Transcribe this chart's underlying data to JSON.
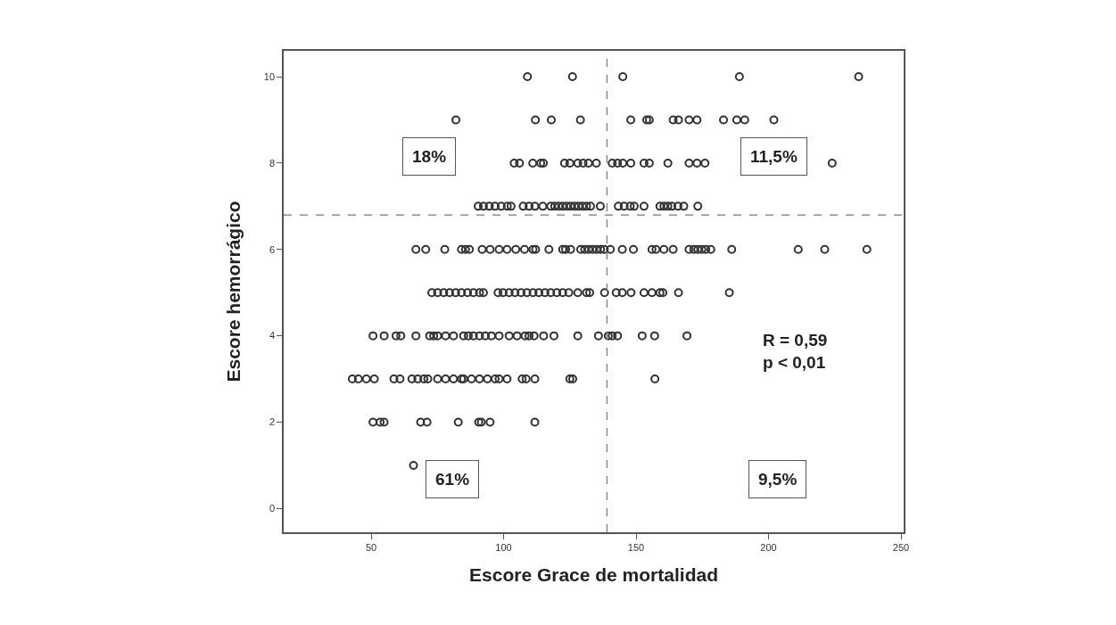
{
  "chart_data": {
    "type": "scatter",
    "xlabel": "Escore Grace de mortalidad",
    "ylabel": "Escore hemorrágico",
    "x": [
      109,
      126,
      145,
      189,
      234,
      82,
      112,
      118,
      129,
      148,
      154,
      155,
      164,
      166,
      170,
      173,
      183,
      188,
      191,
      202,
      104,
      106,
      111,
      114,
      115,
      123,
      125,
      128,
      130,
      132,
      135,
      141,
      143,
      145,
      148,
      153,
      155,
      162,
      170,
      173,
      176,
      224,
      90.4,
      92.4,
      94.6,
      96.8,
      99.1,
      101.4,
      102.8,
      107.4,
      109.6,
      111.8,
      114.8,
      117.8,
      119.3,
      120.8,
      122.3,
      123.8,
      125.3,
      126.8,
      128.3,
      129.8,
      131.3,
      132.8,
      136.5,
      143.3,
      145.5,
      147.8,
      149.3,
      153,
      159,
      160.5,
      162,
      163.5,
      165.8,
      168,
      173.3,
      66.9,
      70.6,
      77.8,
      84.1,
      85.6,
      87.1,
      91.9,
      94.9,
      98.3,
      101.3,
      104.6,
      107.9,
      111.1,
      112.1,
      117.1,
      122.3,
      123.4,
      125.3,
      129.1,
      130.6,
      132.1,
      133.6,
      135.1,
      136.6,
      138,
      140.3,
      144.8,
      149,
      156,
      157.5,
      160.5,
      164,
      170,
      171.8,
      173.3,
      174.8,
      176.3,
      178.2,
      186.1,
      211.2,
      221.2,
      237.1,
      72.9,
      75.1,
      77.4,
      79.6,
      81.9,
      84.1,
      86.4,
      88.6,
      90.9,
      92.4,
      97.9,
      99.8,
      102.1,
      104.3,
      106.6,
      108.8,
      111.1,
      113.3,
      115.6,
      117.8,
      120.1,
      122.3,
      124.6,
      128,
      131.3,
      132.5,
      138.1,
      142.5,
      144.8,
      148.1,
      153,
      156,
      159,
      160.1,
      166,
      185.2,
      50.7,
      54.9,
      59.4,
      61.2,
      66.9,
      72.1,
      73.6,
      75.1,
      78.1,
      81.1,
      84.9,
      86.7,
      88.6,
      90.9,
      93.1,
      95.4,
      98.3,
      102.1,
      105.1,
      108.1,
      109.6,
      111.5,
      115.1,
      119,
      128,
      135.8,
      139.5,
      141,
      143,
      152.3,
      157,
      169.2,
      42.9,
      45.2,
      48.2,
      51.2,
      58.6,
      60.9,
      65.4,
      67.6,
      69.9,
      71.4,
      75.1,
      78.1,
      81.1,
      84.1,
      84.9,
      87.9,
      90.9,
      93.9,
      96.8,
      98.3,
      101.3,
      107,
      108.5,
      111.8,
      125,
      126.1,
      157.1,
      50.7,
      53.4,
      54.9,
      68.7,
      71.1,
      82.9,
      90.6,
      91.6,
      94.9,
      111.8,
      66
    ],
    "values": [
      10,
      10,
      10,
      10,
      10,
      9,
      9,
      9,
      9,
      9,
      9,
      9,
      9,
      9,
      9,
      9,
      9,
      9,
      9,
      9,
      8,
      8,
      8,
      8,
      8,
      8,
      8,
      8,
      8,
      8,
      8,
      8,
      8,
      8,
      8,
      8,
      8,
      8,
      8,
      8,
      8,
      8,
      7,
      7,
      7,
      7,
      7,
      7,
      7,
      7,
      7,
      7,
      7,
      7,
      7,
      7,
      7,
      7,
      7,
      7,
      7,
      7,
      7,
      7,
      7,
      7,
      7,
      7,
      7,
      7,
      7,
      7,
      7,
      7,
      7,
      7,
      7,
      6,
      6,
      6,
      6,
      6,
      6,
      6,
      6,
      6,
      6,
      6,
      6,
      6,
      6,
      6,
      6,
      6,
      6,
      6,
      6,
      6,
      6,
      6,
      6,
      6,
      6,
      6,
      6,
      6,
      6,
      6,
      6,
      6,
      6,
      6,
      6,
      6,
      6,
      6,
      6,
      6,
      6,
      5,
      5,
      5,
      5,
      5,
      5,
      5,
      5,
      5,
      5,
      5,
      5,
      5,
      5,
      5,
      5,
      5,
      5,
      5,
      5,
      5,
      5,
      5,
      5,
      5,
      5,
      5,
      5,
      5,
      5,
      5,
      5,
      5,
      5,
      5,
      5,
      4,
      4,
      4,
      4,
      4,
      4,
      4,
      4,
      4,
      4,
      4,
      4,
      4,
      4,
      4,
      4,
      4,
      4,
      4,
      4,
      4,
      4,
      4,
      4,
      4,
      4,
      4,
      4,
      4,
      4,
      4,
      4,
      3,
      3,
      3,
      3,
      3,
      3,
      3,
      3,
      3,
      3,
      3,
      3,
      3,
      3,
      3,
      3,
      3,
      3,
      3,
      3,
      3,
      3,
      3,
      3,
      3,
      3,
      3,
      2,
      2,
      2,
      2,
      2,
      2,
      2,
      2,
      2,
      2,
      1
    ],
    "color": "#333333",
    "marker": "circle",
    "grid": false,
    "xlim": [
      17,
      251
    ],
    "xticks": [
      50,
      100,
      150,
      200,
      250
    ],
    "ylim": [
      -0.55,
      10.6
    ],
    "yticks": [
      0,
      2,
      4,
      6,
      8,
      10
    ],
    "ref_lines": [
      {
        "axis": "x",
        "value": 139,
        "line_style": "dashed",
        "color": "#777777"
      },
      {
        "axis": "y",
        "value": 6.8,
        "line_style": "dashed",
        "color": "#777777"
      }
    ],
    "annotations": [
      "18%",
      "11,5%",
      "61%",
      "9,5%",
      "R = 0,59\np < 0,01"
    ]
  }
}
